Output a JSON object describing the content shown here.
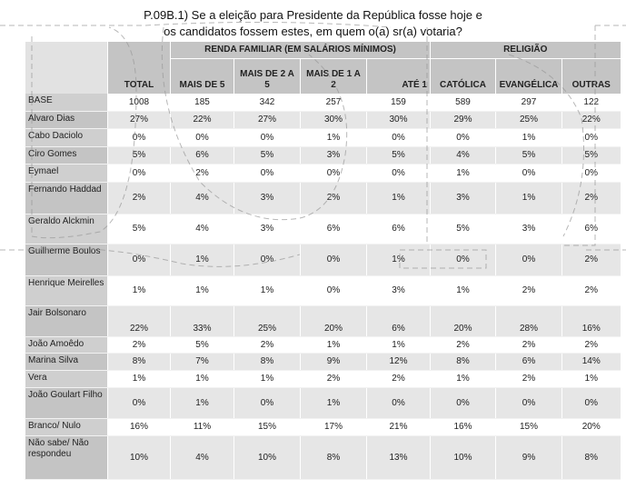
{
  "title": {
    "line1": "P.09B.1) Se a eleição para Presidente da República fosse hoje e",
    "line2": "os candidatos fossem estes, em quem o(a) sr(a) votaria?"
  },
  "table": {
    "groups": {
      "renda": "RENDA FAMILIAR (EM SALÁRIOS MÍNIMOS)",
      "religiao": "RELIGIÃO"
    },
    "columns": [
      "TOTAL",
      "MAIS DE 5",
      "MAIS DE 2 A 5",
      "MAIS DE 1 A 2",
      "ATÉ 1",
      "CATÓLICA",
      "EVANGÉLICA",
      "OUTRAS"
    ],
    "rows": [
      {
        "label": "BASE",
        "values": [
          "1008",
          "185",
          "342",
          "257",
          "159",
          "589",
          "297",
          "122"
        ]
      },
      {
        "label": "Alvaro Dias",
        "values": [
          "27%",
          "22%",
          "27%",
          "30%",
          "30%",
          "29%",
          "25%",
          "22%"
        ]
      },
      {
        "label": "Cabo Daciolo",
        "values": [
          "0%",
          "0%",
          "0%",
          "1%",
          "0%",
          "0%",
          "1%",
          "0%"
        ]
      },
      {
        "label": "Ciro Gomes",
        "values": [
          "5%",
          "6%",
          "5%",
          "3%",
          "5%",
          "4%",
          "5%",
          "5%"
        ]
      },
      {
        "label": "Eymael",
        "values": [
          "0%",
          "2%",
          "0%",
          "0%",
          "0%",
          "1%",
          "0%",
          "0%"
        ]
      },
      {
        "label": "Fernando Haddad",
        "values": [
          "2%",
          "4%",
          "3%",
          "2%",
          "1%",
          "3%",
          "1%",
          "2%"
        ]
      },
      {
        "label": "Geraldo Alckmin",
        "values": [
          "5%",
          "4%",
          "3%",
          "6%",
          "6%",
          "5%",
          "3%",
          "6%"
        ]
      },
      {
        "label": "Guilherme Boulos",
        "values": [
          "0%",
          "1%",
          "0%",
          "0%",
          "1%",
          "0%",
          "0%",
          "2%"
        ]
      },
      {
        "label": "Henrique Meirelles",
        "values": [
          "1%",
          "1%",
          "1%",
          "0%",
          "3%",
          "1%",
          "2%",
          "2%"
        ]
      },
      {
        "label": "Jair Bolsonaro",
        "values": [
          "22%",
          "33%",
          "25%",
          "20%",
          "6%",
          "20%",
          "28%",
          "16%"
        ]
      },
      {
        "label": "João Amoêdo",
        "values": [
          "2%",
          "5%",
          "2%",
          "1%",
          "1%",
          "2%",
          "2%",
          "2%"
        ]
      },
      {
        "label": "Marina Silva",
        "values": [
          "8%",
          "7%",
          "8%",
          "9%",
          "12%",
          "8%",
          "6%",
          "14%"
        ]
      },
      {
        "label": "Vera",
        "values": [
          "1%",
          "1%",
          "1%",
          "2%",
          "2%",
          "1%",
          "2%",
          "1%"
        ]
      },
      {
        "label": "João Goulart Filho",
        "values": [
          "0%",
          "1%",
          "0%",
          "1%",
          "0%",
          "0%",
          "0%",
          "0%"
        ]
      },
      {
        "label": "Branco/ Nulo",
        "values": [
          "16%",
          "11%",
          "15%",
          "17%",
          "21%",
          "16%",
          "15%",
          "20%"
        ]
      },
      {
        "label": "Não sabe/ Não respondeu",
        "values": [
          "10%",
          "4%",
          "10%",
          "8%",
          "13%",
          "10%",
          "9%",
          "8%"
        ]
      }
    ]
  }
}
